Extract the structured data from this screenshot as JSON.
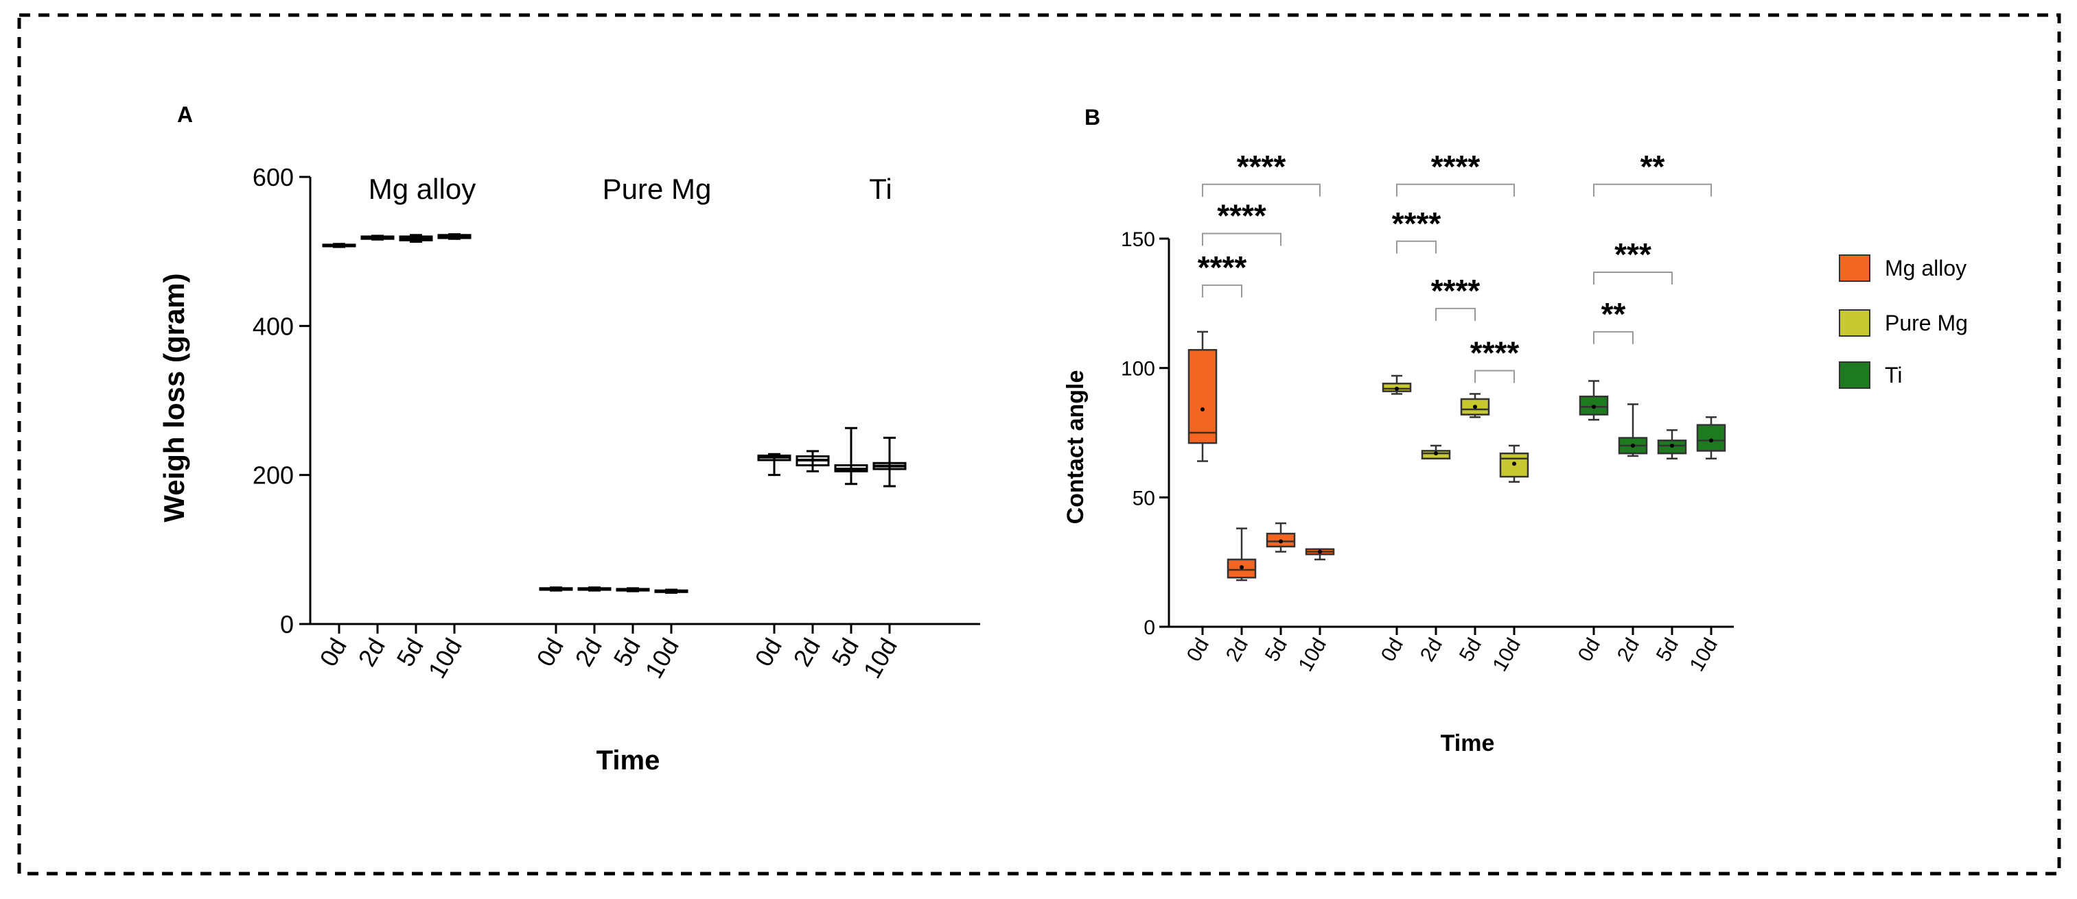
{
  "chart_data": [
    {
      "panel": "A",
      "type": "box",
      "title": "",
      "xlabel": "Time",
      "ylabel": "Weigh loss (gram)",
      "ylim": [
        0,
        600
      ],
      "yticks": [
        0,
        200,
        400,
        600
      ],
      "grid": false,
      "groups": [
        "Mg alloy",
        "Pure Mg",
        "Ti"
      ],
      "categories": [
        "0d",
        "2d",
        "5d",
        "10d"
      ],
      "series": [
        {
          "name": "Mg alloy",
          "boxes": [
            {
              "label": "0d",
              "min": 506,
              "q1": 507,
              "median": 508,
              "q3": 509,
              "max": 510
            },
            {
              "label": "2d",
              "min": 516,
              "q1": 517,
              "median": 518,
              "q3": 520,
              "max": 521
            },
            {
              "label": "5d",
              "min": 513,
              "q1": 515,
              "median": 517,
              "q3": 520,
              "max": 522
            },
            {
              "label": "10d",
              "min": 517,
              "q1": 518,
              "median": 520,
              "q3": 522,
              "max": 523
            }
          ]
        },
        {
          "name": "Pure Mg",
          "boxes": [
            {
              "label": "0d",
              "min": 45,
              "q1": 46,
              "median": 47,
              "q3": 48,
              "max": 49
            },
            {
              "label": "2d",
              "min": 45,
              "q1": 46,
              "median": 47,
              "q3": 48,
              "max": 49
            },
            {
              "label": "5d",
              "min": 44,
              "q1": 45,
              "median": 46,
              "q3": 47,
              "max": 48
            },
            {
              "label": "10d",
              "min": 42,
              "q1": 43,
              "median": 44,
              "q3": 45,
              "max": 46
            }
          ]
        },
        {
          "name": "Ti",
          "boxes": [
            {
              "label": "0d",
              "min": 200,
              "q1": 220,
              "median": 224,
              "q3": 226,
              "max": 228
            },
            {
              "label": "2d",
              "min": 205,
              "q1": 213,
              "median": 220,
              "q3": 225,
              "max": 232
            },
            {
              "label": "5d",
              "min": 188,
              "q1": 205,
              "median": 208,
              "q3": 213,
              "max": 263
            },
            {
              "label": "10d",
              "min": 185,
              "q1": 208,
              "median": 212,
              "q3": 216,
              "max": 250
            }
          ]
        }
      ]
    },
    {
      "panel": "B",
      "type": "box",
      "title": "",
      "xlabel": "Time",
      "ylabel": "Contact angle",
      "ylim": [
        0,
        150
      ],
      "yticks": [
        0,
        50,
        100,
        150
      ],
      "grid": false,
      "legend_position": "right",
      "categories": [
        "0d",
        "2d",
        "5d",
        "10d"
      ],
      "series": [
        {
          "name": "Mg alloy",
          "color": "#f26522",
          "boxes": [
            {
              "label": "0d",
              "min": 64,
              "q1": 71,
              "median": 75,
              "q3": 107,
              "max": 114,
              "mean": 84
            },
            {
              "label": "2d",
              "min": 18,
              "q1": 19,
              "median": 22,
              "q3": 26,
              "max": 38,
              "mean": 23
            },
            {
              "label": "5d",
              "min": 29,
              "q1": 31,
              "median": 33,
              "q3": 36,
              "max": 40,
              "mean": 33
            },
            {
              "label": "10d",
              "min": 26,
              "q1": 28,
              "median": 29,
              "q3": 30,
              "max": 30,
              "mean": 29
            }
          ]
        },
        {
          "name": "Pure Mg",
          "color": "#c8c832",
          "boxes": [
            {
              "label": "0d",
              "min": 90,
              "q1": 91,
              "median": 92,
              "q3": 94,
              "max": 97,
              "mean": 92
            },
            {
              "label": "2d",
              "min": 65,
              "q1": 65,
              "median": 67,
              "q3": 68,
              "max": 70,
              "mean": 67
            },
            {
              "label": "5d",
              "min": 81,
              "q1": 82,
              "median": 84,
              "q3": 88,
              "max": 90,
              "mean": 85
            },
            {
              "label": "10d",
              "min": 56,
              "q1": 58,
              "median": 65,
              "q3": 67,
              "max": 70,
              "mean": 63
            }
          ]
        },
        {
          "name": "Ti",
          "color": "#1e7a1e",
          "boxes": [
            {
              "label": "0d",
              "min": 80,
              "q1": 82,
              "median": 85,
              "q3": 89,
              "max": 95,
              "mean": 85
            },
            {
              "label": "2d",
              "min": 66,
              "q1": 67,
              "median": 70,
              "q3": 73,
              "max": 86,
              "mean": 70
            },
            {
              "label": "5d",
              "min": 65,
              "q1": 67,
              "median": 70,
              "q3": 72,
              "max": 76,
              "mean": 70
            },
            {
              "label": "10d",
              "min": 65,
              "q1": 68,
              "median": 72,
              "q3": 78,
              "max": 81,
              "mean": 72
            }
          ]
        }
      ],
      "significance": [
        {
          "series": "Mg alloy",
          "from": "0d",
          "to": "2d",
          "label": "****",
          "y": 132
        },
        {
          "series": "Mg alloy",
          "from": "0d",
          "to": "5d",
          "label": "****",
          "y": 152
        },
        {
          "series": "Mg alloy",
          "from": "0d",
          "to": "10d",
          "label": "****",
          "y": 171
        },
        {
          "series": "Pure Mg",
          "from": "0d",
          "to": "2d",
          "label": "****",
          "y": 149
        },
        {
          "series": "Pure Mg",
          "from": "0d",
          "to": "10d",
          "label": "****",
          "y": 171
        },
        {
          "series": "Pure Mg",
          "from": "2d",
          "to": "5d",
          "label": "****",
          "y": 123
        },
        {
          "series": "Pure Mg",
          "from": "5d",
          "to": "10d",
          "label": "****",
          "y": 99
        },
        {
          "series": "Ti",
          "from": "0d",
          "to": "10d",
          "label": "**",
          "y": 171
        },
        {
          "series": "Ti",
          "from": "0d",
          "to": "5d",
          "label": "***",
          "y": 137
        },
        {
          "series": "Ti",
          "from": "0d",
          "to": "2d",
          "label": "**",
          "y": 114
        }
      ]
    }
  ]
}
